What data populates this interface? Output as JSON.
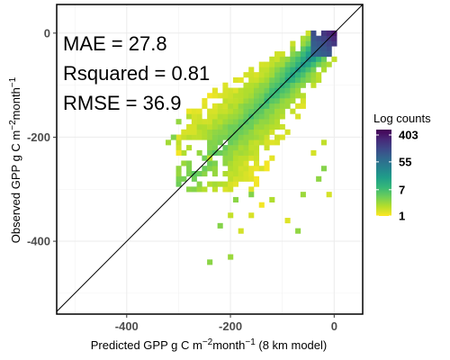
{
  "chart_data": {
    "type": "heatmap",
    "xlabel": "Predicted GPP g C m",
    "xlabel_sup1": "−2",
    "xlabel_mid": "month",
    "xlabel_sup2": "−1",
    "xlabel_tail": " (8 km model)",
    "ylabel": "Observed GPP g C m",
    "ylabel_sup1": "−2",
    "ylabel_mid": "month",
    "ylabel_sup2": "−1",
    "xlim": [
      -535,
      55
    ],
    "ylim": [
      -540,
      55
    ],
    "x_ticks": [
      -400,
      -200,
      0
    ],
    "x_tick_labels": [
      "-400",
      "-200",
      "0"
    ],
    "y_ticks": [
      0,
      -200,
      -400
    ],
    "y_tick_labels": [
      "0",
      "-200",
      "-400"
    ],
    "grid": true,
    "reference_line": "y = x",
    "bin_size": 10,
    "annotations": [
      "MAE = 27.8",
      "Rsquared = 0.81",
      "RMSE = 36.9"
    ],
    "legend": {
      "title": "Log counts",
      "placement": "right",
      "scale": "log",
      "ticks": [
        403,
        55,
        7,
        1
      ],
      "tick_labels": [
        "403",
        "55",
        "7",
        "1"
      ],
      "min": 1,
      "max": 600
    },
    "colormap": [
      "#fde725",
      "#b5de2b",
      "#6ece58",
      "#35b779",
      "#1f9e89",
      "#26828e",
      "#31688e",
      "#3e4989",
      "#482878",
      "#440154"
    ]
  }
}
